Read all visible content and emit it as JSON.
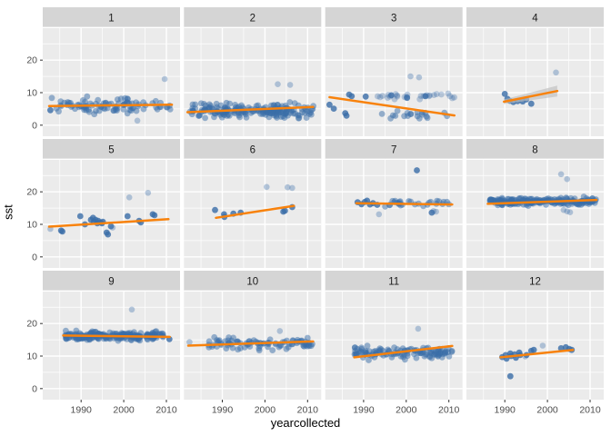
{
  "chart_data": {
    "type": "scatter",
    "title": "",
    "x_label": "yearcollected",
    "y_label": "sst",
    "x_ticks": [
      1990,
      2000,
      2010
    ],
    "x_minor_ticks": [
      1985,
      1995,
      2005
    ],
    "y_ticks": [
      0,
      10,
      20
    ],
    "y_minor_ticks": [
      5,
      15,
      25
    ],
    "y_major_grid": [
      0,
      10,
      20,
      30
    ],
    "xlim": [
      1981,
      2013.2
    ],
    "ylim": [
      -3.4,
      30.1
    ],
    "legend": "none",
    "grid": "on",
    "facet_rows": 3,
    "facet_cols": 4,
    "facets": [
      {
        "label": "1",
        "clusters": [
          {
            "n": 95,
            "x0": 1983,
            "x1": 2011.5,
            "mean": 6.1,
            "sd": 1.9,
            "ymin": 1.0,
            "ymax": 9.8,
            "seed": 101
          }
        ],
        "points": [
          [
            1982.8,
            4.6
          ]
        ],
        "light_points": [
          [
            2009.6,
            14.2
          ],
          [
            2003.2,
            1.4
          ]
        ],
        "trend": [
          1982.5,
          5.9,
          2011.3,
          6.3
        ]
      },
      {
        "label": "2",
        "clusters": [
          {
            "n": 200,
            "x0": 1982.3,
            "x1": 2011.5,
            "mean": 4.4,
            "sd": 1.8,
            "ymin": 0.6,
            "ymax": 8.6,
            "seed": 202
          }
        ],
        "points": [],
        "light_points": [
          [
            2003.0,
            12.6
          ],
          [
            2005.9,
            12.4
          ]
        ],
        "trend": [
          1981.8,
          4.0,
          2011.3,
          5.6
        ]
      },
      {
        "label": "3",
        "clusters": [
          {
            "n": 26,
            "x0": 1993,
            "x1": 2011.5,
            "mean": 8.8,
            "sd": 0.8,
            "ymin": 7.2,
            "ymax": 10.3,
            "seed": 303,
            "light": true
          },
          {
            "n": 20,
            "x0": 1994,
            "x1": 2011.0,
            "mean": 3.2,
            "sd": 1.4,
            "ymin": 0.8,
            "ymax": 5.4,
            "seed": 304
          }
        ],
        "points": [
          [
            1982.0,
            6.3
          ],
          [
            1983.0,
            5.1
          ],
          [
            1985.7,
            3.7
          ],
          [
            1986.0,
            2.9
          ],
          [
            1986.6,
            9.4
          ],
          [
            1987.2,
            8.9
          ],
          [
            1990.5,
            8.8
          ],
          [
            1996.5,
            9.2
          ],
          [
            2000.2,
            8.4
          ],
          [
            2004.5,
            8.9
          ]
        ],
        "light_points": [
          [
            2001.0,
            15.0
          ],
          [
            2003.0,
            14.7
          ]
        ],
        "trend": [
          1982.0,
          8.6,
          2011.3,
          3.0
        ]
      },
      {
        "label": "4",
        "clusters": [],
        "points": [
          [
            1990.0,
            9.6
          ],
          [
            1990.6,
            8.1
          ],
          [
            1991.2,
            7.5
          ],
          [
            1992.0,
            7.1
          ],
          [
            1993.0,
            7.4
          ],
          [
            1994.2,
            7.3
          ],
          [
            1995.0,
            7.9
          ],
          [
            1996.2,
            6.6
          ]
        ],
        "light_points": [
          [
            2002.0,
            16.2
          ]
        ],
        "trend": [
          1989.8,
          7.2,
          2002.3,
          10.5
        ],
        "se_band": true
      },
      {
        "label": "5",
        "clusters": [],
        "points": [
          [
            1985.3,
            8.1
          ],
          [
            1985.6,
            7.8
          ],
          [
            1989.8,
            12.5
          ],
          [
            1990.9,
            10.0
          ],
          [
            1992.3,
            11.4
          ],
          [
            1992.8,
            12.0
          ],
          [
            1993.0,
            10.8
          ],
          [
            1993.4,
            11.4
          ],
          [
            1993.8,
            10.3
          ],
          [
            1994.0,
            11.1
          ],
          [
            1994.5,
            10.6
          ],
          [
            1994.9,
            10.3
          ],
          [
            1995.1,
            10.8
          ],
          [
            1996.0,
            7.5
          ],
          [
            1996.3,
            6.9
          ],
          [
            1997.0,
            9.4
          ],
          [
            2000.9,
            12.5
          ],
          [
            2003.6,
            11.1
          ],
          [
            2004.0,
            10.6
          ],
          [
            2006.8,
            13.1
          ],
          [
            2007.2,
            12.8
          ]
        ],
        "light_points": [
          [
            1982.8,
            8.6
          ],
          [
            1997.4,
            9.0
          ],
          [
            2001.3,
            18.3
          ],
          [
            2005.7,
            19.7
          ]
        ],
        "trend": [
          1982.5,
          9.3,
          2010.5,
          11.6
        ]
      },
      {
        "label": "6",
        "clusters": [],
        "points": [
          [
            1988.3,
            14.4
          ],
          [
            1990.4,
            13.1
          ],
          [
            1990.5,
            12.3
          ],
          [
            1992.6,
            13.3
          ],
          [
            1994.3,
            13.6
          ],
          [
            2004.3,
            13.9
          ],
          [
            2004.7,
            14.2
          ],
          [
            2006.4,
            15.3
          ]
        ],
        "light_points": [
          [
            2000.4,
            21.5
          ],
          [
            2005.3,
            21.4
          ],
          [
            2006.4,
            21.2
          ]
        ],
        "trend": [
          1988.5,
          12.0,
          2006.8,
          15.7
        ]
      },
      {
        "label": "7",
        "clusters": [
          {
            "n": 28,
            "x0": 1995,
            "x1": 2011.0,
            "mean": 16.4,
            "sd": 0.8,
            "ymin": 14.6,
            "ymax": 18.0,
            "seed": 707
          }
        ],
        "points": [
          [
            1988.6,
            16.8
          ],
          [
            1989.5,
            16.2
          ],
          [
            1990.3,
            16.9
          ],
          [
            1990.8,
            17.3
          ],
          [
            1991.5,
            16.1
          ],
          [
            1992.2,
            16.5
          ],
          [
            1993.2,
            16.0
          ],
          [
            2002.5,
            26.6
          ],
          [
            2006.0,
            13.6
          ]
        ],
        "light_points": [
          [
            1993.6,
            13.1
          ],
          [
            2006.4,
            14.1
          ],
          [
            2007.0,
            13.9
          ]
        ],
        "trend": [
          1988.3,
          16.5,
          2010.8,
          16.1
        ]
      },
      {
        "label": "8",
        "clusters": [
          {
            "n": 210,
            "x0": 1986.5,
            "x1": 2011.5,
            "mean": 17.1,
            "sd": 0.9,
            "ymin": 14.9,
            "ymax": 19.6,
            "seed": 808
          }
        ],
        "points": [],
        "light_points": [
          [
            2003.2,
            25.4
          ],
          [
            2004.6,
            23.9
          ],
          [
            2003.8,
            14.4
          ],
          [
            2004.6,
            14.0
          ],
          [
            2005.3,
            13.7
          ]
        ],
        "trend": [
          1986.0,
          16.3,
          2011.5,
          17.5
        ]
      },
      {
        "label": "9",
        "clusters": [
          {
            "n": 220,
            "x0": 1986.2,
            "x1": 2009.5,
            "mean": 16.1,
            "sd": 1.1,
            "ymin": 12.9,
            "ymax": 19.4,
            "seed": 909
          }
        ],
        "points": [
          [
            2010.7,
            15.2
          ]
        ],
        "light_points": [
          [
            2001.9,
            24.3
          ]
        ],
        "trend": [
          1985.8,
          16.3,
          2010.8,
          15.9
        ]
      },
      {
        "label": "10",
        "clusters": [
          {
            "n": 90,
            "x0": 1986.8,
            "x1": 2011.3,
            "mean": 13.9,
            "sd": 1.5,
            "ymin": 10.2,
            "ymax": 17.3,
            "seed": 1010
          }
        ],
        "points": [],
        "light_points": [
          [
            1982.3,
            14.3
          ],
          [
            2003.5,
            17.7
          ]
        ],
        "trend": [
          1982.0,
          13.2,
          2011.3,
          14.5
        ]
      },
      {
        "label": "11",
        "clusters": [
          {
            "n": 120,
            "x0": 1987.5,
            "x1": 2011.0,
            "mean": 11.0,
            "sd": 1.5,
            "ymin": 6.8,
            "ymax": 14.6,
            "seed": 1111
          }
        ],
        "points": [],
        "light_points": [
          [
            2002.8,
            18.4
          ]
        ],
        "trend": [
          1987.8,
          9.6,
          2010.8,
          13.1
        ]
      },
      {
        "label": "12",
        "clusters": [],
        "points": [
          [
            1989.4,
            9.7
          ],
          [
            1990.2,
            10.3
          ],
          [
            1990.4,
            9.2
          ],
          [
            1991.3,
            10.8
          ],
          [
            1991.5,
            10.0
          ],
          [
            1992.3,
            10.5
          ],
          [
            1992.6,
            9.5
          ],
          [
            1993.4,
            11.1
          ],
          [
            1993.6,
            10.3
          ],
          [
            1995.1,
            10.3
          ],
          [
            1996.2,
            11.6
          ],
          [
            1996.8,
            11.9
          ],
          [
            2003.2,
            12.4
          ],
          [
            2004.3,
            12.7
          ],
          [
            2005.1,
            12.2
          ],
          [
            2005.7,
            11.9
          ],
          [
            1991.3,
            3.8
          ]
        ],
        "light_points": [
          [
            1998.9,
            13.2
          ],
          [
            1994.8,
            9.9
          ]
        ],
        "trend": [
          1989.0,
          9.6,
          2006.0,
          11.9
        ]
      }
    ]
  },
  "colors": {
    "point": "#3a6da8",
    "trend_line": "#f8820c",
    "panel_bg": "#ebebeb",
    "strip_bg": "#d5d5d5",
    "grid": "#ffffff",
    "tick_text": "#4d4d4d",
    "strip_text": "#1a1a1a",
    "axis_title": "#000000",
    "se_band": "#bfbfbf"
  }
}
